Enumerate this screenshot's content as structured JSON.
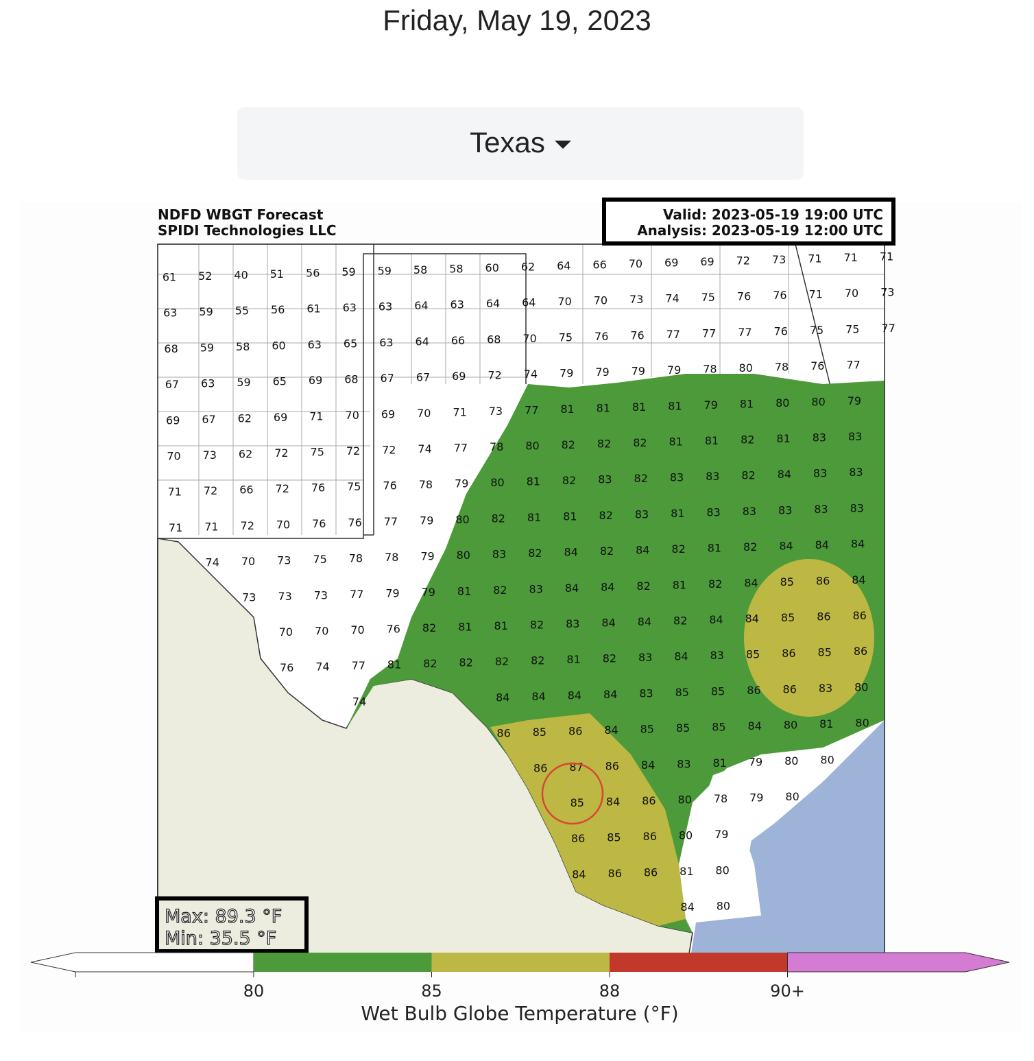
{
  "date": "Friday, May 19, 2023",
  "dropdown": {
    "label": "Texas"
  },
  "map": {
    "title": [
      "NDFD WBGT Forecast",
      "SPIDI Technologies LLC"
    ],
    "valid": "Valid: 2023-05-19 19:00 UTC",
    "analysis": "Analysis: 2023-05-19 12:00 UTC",
    "max": "Max: 89.3 °F",
    "min": "Min: 35.5 °F",
    "grid_labels": [
      [
        61,
        52,
        40,
        51,
        56,
        59,
        59,
        58,
        58,
        60,
        62,
        64,
        66,
        70,
        69,
        69,
        72,
        73,
        71,
        71,
        71
      ],
      [
        63,
        59,
        55,
        56,
        61,
        63,
        63,
        64,
        63,
        64,
        64,
        70,
        70,
        73,
        74,
        75,
        76,
        76,
        71,
        70,
        73
      ],
      [
        68,
        59,
        58,
        60,
        63,
        65,
        63,
        64,
        66,
        68,
        70,
        75,
        76,
        76,
        77,
        77,
        77,
        76,
        75,
        75,
        77
      ],
      [
        67,
        63,
        59,
        65,
        69,
        68,
        67,
        67,
        69,
        72,
        74,
        79,
        79,
        79,
        79,
        78,
        80,
        78,
        76,
        77,
        null
      ],
      [
        69,
        67,
        62,
        69,
        71,
        70,
        69,
        70,
        71,
        73,
        77,
        81,
        81,
        81,
        81,
        79,
        81,
        80,
        80,
        79,
        null
      ],
      [
        70,
        73,
        62,
        72,
        75,
        72,
        72,
        74,
        77,
        78,
        80,
        82,
        82,
        82,
        81,
        81,
        82,
        81,
        83,
        83,
        null
      ],
      [
        71,
        72,
        66,
        72,
        76,
        75,
        76,
        78,
        79,
        80,
        81,
        82,
        83,
        82,
        83,
        83,
        82,
        84,
        83,
        83,
        null
      ],
      [
        71,
        71,
        72,
        70,
        76,
        76,
        77,
        79,
        80,
        82,
        81,
        81,
        82,
        83,
        81,
        83,
        83,
        83,
        83,
        83,
        null
      ],
      [
        null,
        74,
        70,
        73,
        75,
        78,
        78,
        79,
        80,
        83,
        82,
        84,
        82,
        84,
        82,
        81,
        82,
        84,
        84,
        84,
        null
      ],
      [
        null,
        null,
        73,
        73,
        73,
        77,
        79,
        79,
        81,
        82,
        83,
        84,
        84,
        82,
        81,
        82,
        84,
        85,
        86,
        84,
        null
      ],
      [
        null,
        null,
        null,
        70,
        70,
        70,
        76,
        82,
        81,
        81,
        82,
        83,
        84,
        84,
        82,
        84,
        84,
        85,
        86,
        86,
        null
      ],
      [
        null,
        null,
        null,
        76,
        74,
        77,
        81,
        82,
        82,
        82,
        82,
        81,
        82,
        83,
        84,
        83,
        85,
        86,
        85,
        86,
        null
      ],
      [
        null,
        null,
        null,
        null,
        null,
        74,
        null,
        null,
        null,
        84,
        84,
        84,
        84,
        83,
        85,
        85,
        86,
        86,
        83,
        80,
        null
      ],
      [
        null,
        null,
        null,
        null,
        null,
        null,
        null,
        null,
        null,
        86,
        85,
        86,
        84,
        85,
        85,
        85,
        84,
        80,
        81,
        80,
        null
      ],
      [
        null,
        null,
        null,
        null,
        null,
        null,
        null,
        null,
        null,
        null,
        86,
        87,
        86,
        84,
        83,
        81,
        79,
        80,
        80,
        null,
        null
      ],
      [
        null,
        null,
        null,
        null,
        null,
        null,
        null,
        null,
        null,
        null,
        null,
        85,
        84,
        86,
        80,
        78,
        79,
        80,
        null,
        null,
        null
      ],
      [
        null,
        null,
        null,
        null,
        null,
        null,
        null,
        null,
        null,
        null,
        null,
        86,
        85,
        86,
        80,
        79,
        null,
        null,
        null,
        null,
        null
      ],
      [
        null,
        null,
        null,
        null,
        null,
        null,
        null,
        null,
        null,
        null,
        null,
        84,
        86,
        86,
        81,
        80,
        null,
        null,
        null,
        null,
        null
      ],
      [
        null,
        null,
        null,
        null,
        null,
        null,
        null,
        null,
        null,
        null,
        null,
        null,
        null,
        null,
        84,
        80,
        null,
        null,
        null,
        null,
        null
      ]
    ],
    "colorbar": {
      "label": "Wet Bulb Globe Temperature (°F)",
      "ticks": [
        80,
        85,
        88,
        {
          "value": 90,
          "label": "90+"
        }
      ],
      "colors": [
        "#ffffff",
        "#4c9a3a",
        "#bdb843",
        "#c2392c",
        "#d47bd4"
      ]
    }
  }
}
